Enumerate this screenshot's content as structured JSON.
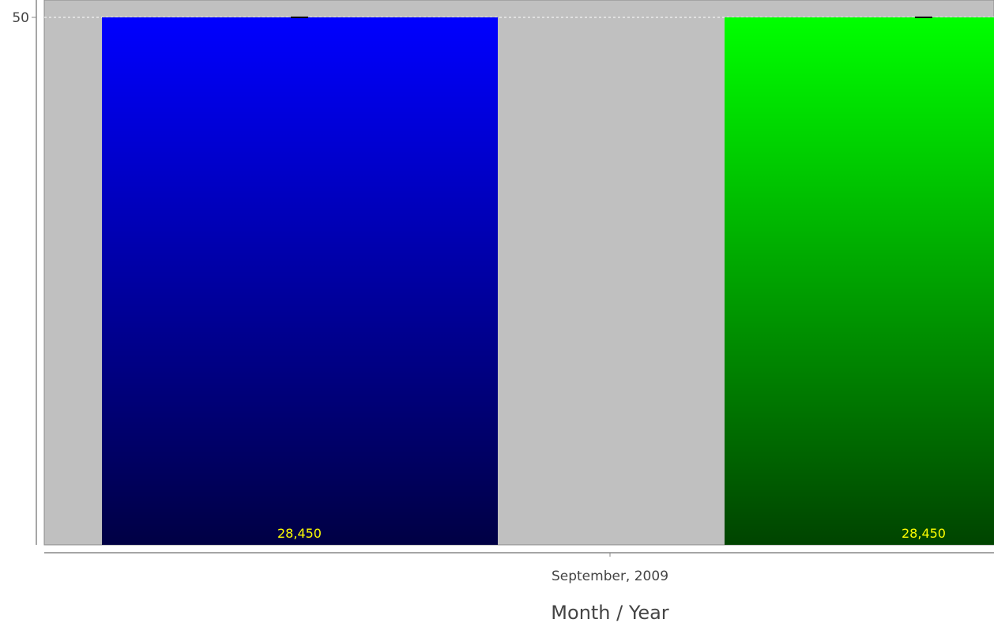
{
  "chart_data": {
    "type": "bar",
    "categories": [
      "September, 2009"
    ],
    "series": [
      {
        "color_top": "#0000ff",
        "color_bottom": "#000044",
        "values": [
          28450
        ]
      },
      {
        "color_top": "#00ff00",
        "color_bottom": "#004400",
        "values": [
          28450
        ]
      }
    ],
    "data_labels": [
      "28,450",
      "28,450"
    ],
    "xlabel": "Month / Year",
    "ylabel": "",
    "ylim": [
      0,
      28450
    ],
    "y_visible_tick": {
      "value": 28450,
      "label": "50"
    },
    "grid": true,
    "plot_background": "#c0c0c0"
  }
}
